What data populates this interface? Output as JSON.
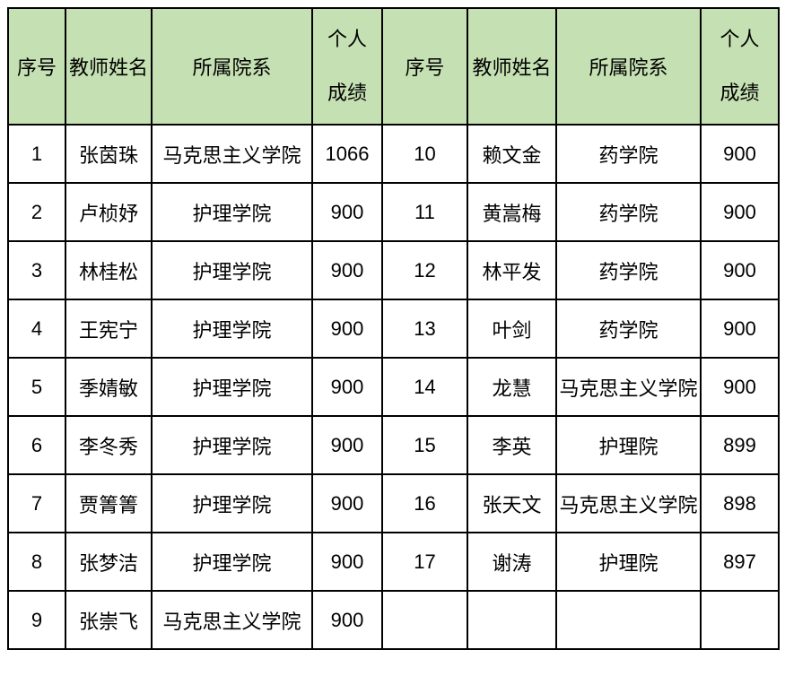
{
  "colors": {
    "header_bg": "#c5e0b2",
    "grid_border": "#000000",
    "ghost_gridline": "#c0c0c0",
    "page_bg": "#ffffff",
    "text": "#000000"
  },
  "header": {
    "no": "序号",
    "name": "教师姓名",
    "dept": "所属院系",
    "score_line1": "个人",
    "score_line2": "成绩"
  },
  "rows": [
    {
      "l_no": "1",
      "l_name": "张茵珠",
      "l_dept": "马克思主义学院",
      "l_score": "1066",
      "r_no": "10",
      "r_name": "赖文金",
      "r_dept": "药学院",
      "r_score": "900"
    },
    {
      "l_no": "2",
      "l_name": "卢桢妤",
      "l_dept": "护理学院",
      "l_score": "900",
      "r_no": "11",
      "r_name": "黄嵩梅",
      "r_dept": "药学院",
      "r_score": "900"
    },
    {
      "l_no": "3",
      "l_name": "林桂松",
      "l_dept": "护理学院",
      "l_score": "900",
      "r_no": "12",
      "r_name": "林平发",
      "r_dept": "药学院",
      "r_score": "900"
    },
    {
      "l_no": "4",
      "l_name": "王宪宁",
      "l_dept": "护理学院",
      "l_score": "900",
      "r_no": "13",
      "r_name": "叶剑",
      "r_dept": "药学院",
      "r_score": "900"
    },
    {
      "l_no": "5",
      "l_name": "季婧敏",
      "l_dept": "护理学院",
      "l_score": "900",
      "r_no": "14",
      "r_name": "龙慧",
      "r_dept": "马克思主义学院",
      "r_score": "900"
    },
    {
      "l_no": "6",
      "l_name": "李冬秀",
      "l_dept": "护理学院",
      "l_score": "900",
      "r_no": "15",
      "r_name": "李英",
      "r_dept": "护理院",
      "r_score": "899"
    },
    {
      "l_no": "7",
      "l_name": "贾箐箐",
      "l_dept": "护理学院",
      "l_score": "900",
      "r_no": "16",
      "r_name": "张天文",
      "r_dept": "马克思主义学院",
      "r_score": "898"
    },
    {
      "l_no": "8",
      "l_name": "张梦洁",
      "l_dept": "护理学院",
      "l_score": "900",
      "r_no": "17",
      "r_name": "谢涛",
      "r_dept": "护理院",
      "r_score": "897"
    },
    {
      "l_no": "9",
      "l_name": "张崇飞",
      "l_dept": "马克思主义学院",
      "l_score": "900",
      "r_no": "",
      "r_name": "",
      "r_dept": "",
      "r_score": ""
    }
  ]
}
